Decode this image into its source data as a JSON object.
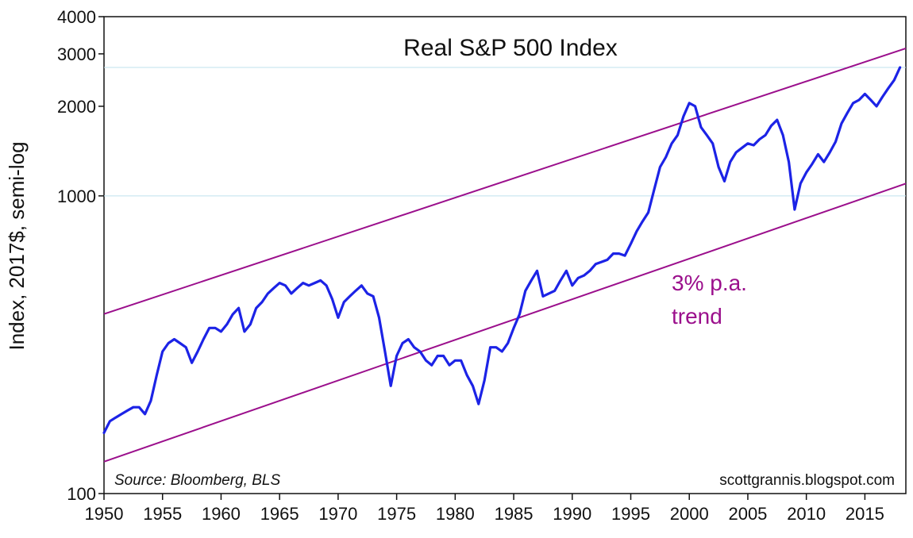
{
  "chart_data": {
    "type": "line",
    "title": "Real S&P 500 Index",
    "ylabel": "Index, 2017$, semi-log",
    "xlabel": "",
    "y_scale": "log",
    "xlim": [
      1950,
      2018.5
    ],
    "ylim": [
      100,
      4000
    ],
    "x_ticks": [
      "1950",
      "1955",
      "1960",
      "1965",
      "1970",
      "1975",
      "1980",
      "1985",
      "1990",
      "1995",
      "2000",
      "2005",
      "2010",
      "2015"
    ],
    "y_ticks": [
      "100",
      "1000",
      "2000",
      "3000",
      "4000"
    ],
    "grid": "horizontal at 1000 and ~2700",
    "colors": {
      "series": "#1c23e6",
      "trend": "#9b0f8c",
      "grid": "#bfe0ee"
    },
    "series": [
      {
        "x": [
          1950.0,
          1950.5,
          1951.0,
          1951.5,
          1952.0,
          1952.5,
          1953.0,
          1953.5,
          1954.0,
          1954.5,
          1955.0,
          1955.5,
          1956.0,
          1956.5,
          1957.0,
          1957.5,
          1958.0,
          1958.5,
          1959.0,
          1959.5,
          1960.0,
          1960.5,
          1961.0,
          1961.5,
          1962.0,
          1962.5,
          1963.0,
          1963.5,
          1964.0,
          1964.5,
          1965.0,
          1965.5,
          1966.0,
          1966.5,
          1967.0,
          1967.5,
          1968.0,
          1968.5,
          1969.0,
          1969.5,
          1970.0,
          1970.5,
          1971.0,
          1971.5,
          1972.0,
          1972.5,
          1973.0,
          1973.5,
          1974.0,
          1974.5,
          1975.0,
          1975.5,
          1976.0,
          1976.5,
          1977.0,
          1977.5,
          1978.0,
          1978.5,
          1979.0,
          1979.5,
          1980.0,
          1980.5,
          1981.0,
          1981.5,
          1982.0,
          1982.5,
          1983.0,
          1983.5,
          1984.0,
          1984.5,
          1985.0,
          1985.5,
          1986.0,
          1986.5,
          1987.0,
          1987.5,
          1988.0,
          1988.5,
          1989.0,
          1989.5,
          1990.0,
          1990.5,
          1991.0,
          1991.5,
          1992.0,
          1992.5,
          1993.0,
          1993.5,
          1994.0,
          1994.5,
          1995.0,
          1995.5,
          1996.0,
          1996.5,
          1997.0,
          1997.5,
          1998.0,
          1998.5,
          1999.0,
          1999.5,
          2000.0,
          2000.5,
          2001.0,
          2001.5,
          2002.0,
          2002.5,
          2003.0,
          2003.5,
          2004.0,
          2004.5,
          2005.0,
          2005.5,
          2006.0,
          2006.5,
          2007.0,
          2007.5,
          2008.0,
          2008.5,
          2009.0,
          2009.5,
          2010.0,
          2010.5,
          2011.0,
          2011.5,
          2012.0,
          2012.5,
          2013.0,
          2013.5,
          2014.0,
          2014.5,
          2015.0,
          2015.5,
          2016.0,
          2016.5,
          2017.0,
          2017.5,
          2018.0
        ],
        "values": [
          160,
          175,
          180,
          185,
          190,
          195,
          195,
          185,
          205,
          250,
          300,
          320,
          330,
          320,
          310,
          275,
          300,
          330,
          360,
          360,
          350,
          370,
          400,
          420,
          350,
          370,
          420,
          440,
          470,
          490,
          510,
          500,
          470,
          490,
          510,
          500,
          510,
          520,
          500,
          450,
          390,
          440,
          460,
          480,
          500,
          470,
          460,
          390,
          300,
          230,
          290,
          320,
          330,
          310,
          300,
          280,
          270,
          290,
          290,
          270,
          280,
          280,
          250,
          230,
          200,
          240,
          310,
          310,
          300,
          320,
          360,
          400,
          480,
          520,
          560,
          460,
          470,
          480,
          520,
          560,
          500,
          530,
          540,
          560,
          590,
          600,
          610,
          640,
          640,
          630,
          690,
          760,
          820,
          880,
          1050,
          1250,
          1350,
          1500,
          1600,
          1850,
          2050,
          2000,
          1700,
          1600,
          1500,
          1250,
          1120,
          1300,
          1400,
          1450,
          1500,
          1480,
          1550,
          1600,
          1720,
          1800,
          1600,
          1300,
          900,
          1100,
          1200,
          1280,
          1380,
          1300,
          1400,
          1520,
          1750,
          1900,
          2050,
          2100,
          2200,
          2100,
          2000,
          2150,
          2300,
          2450,
          2700
        ]
      }
    ],
    "trend_lines": [
      {
        "label": "upper",
        "x": [
          1950,
          2018.5
        ],
        "values": [
          401,
          3130
        ]
      },
      {
        "label": "lower",
        "x": [
          1950,
          2018.5
        ],
        "values": [
          128,
          1100
        ]
      }
    ],
    "annotations": {
      "trend_label_line1": "3% p.a.",
      "trend_label_line2": "trend",
      "source": "Source: Bloomberg, BLS",
      "credit": "scottgrannis.blogspot.com"
    }
  }
}
